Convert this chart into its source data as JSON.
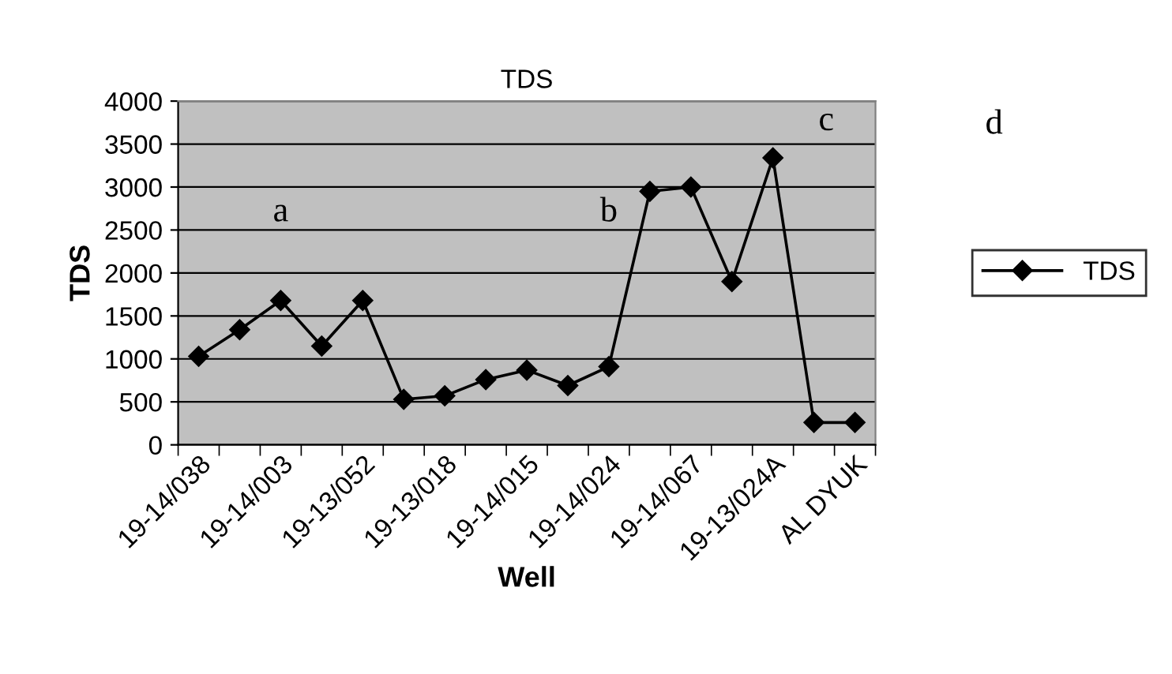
{
  "chart_data": {
    "type": "line",
    "title": "TDS",
    "xlabel": "Well",
    "ylabel": "TDS",
    "categories": [
      "19-14/038",
      null,
      "19-14/003",
      null,
      "19-13/052",
      null,
      "19-13/018",
      null,
      "19-14/015",
      null,
      "19-14/024",
      null,
      "19-14/067",
      null,
      "19-13/024A",
      null,
      "AL DYUK"
    ],
    "series": [
      {
        "name": "TDS",
        "color": "#000000",
        "values": [
          1030,
          1340,
          1680,
          1150,
          1680,
          530,
          570,
          760,
          870,
          690,
          910,
          2950,
          3000,
          1900,
          3340,
          260,
          260
        ]
      }
    ],
    "ylim": [
      0,
      4000
    ],
    "yticks": [
      0,
      500,
      1000,
      1500,
      2000,
      2500,
      3000,
      3500,
      4000
    ],
    "grid": "y",
    "legend": "right",
    "marker": "diamond",
    "line_style": "solid",
    "annotations": [
      "a",
      "b",
      "c",
      "d"
    ]
  }
}
